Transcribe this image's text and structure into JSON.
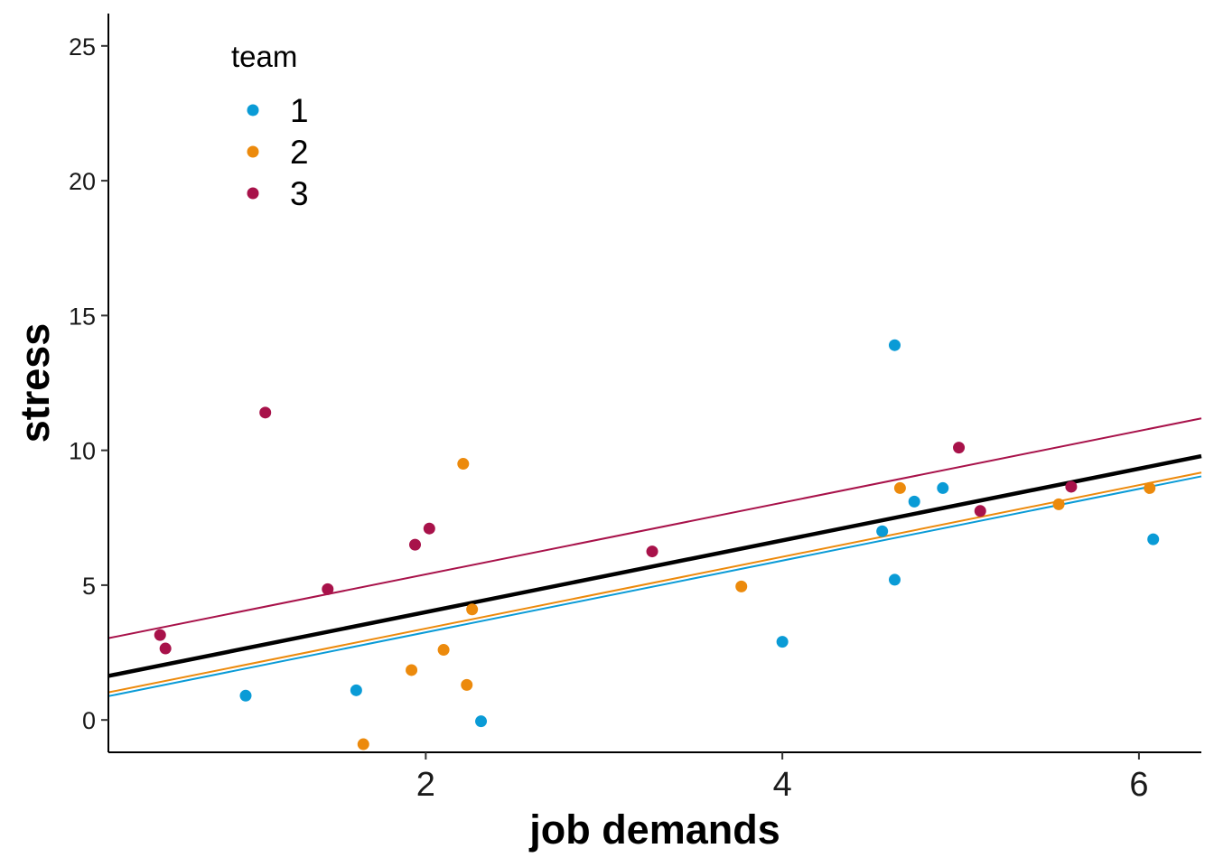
{
  "chart_data": {
    "type": "scatter",
    "title": "",
    "xlabel": "job demands",
    "ylabel": "stress",
    "xlim": [
      0.22,
      6.35
    ],
    "ylim": [
      -1.2,
      26.2
    ],
    "x_ticks": [
      2,
      4,
      6
    ],
    "y_ticks": [
      0,
      5,
      10,
      15,
      20,
      25
    ],
    "grid": false,
    "legend": {
      "title": "team",
      "position": "top-left"
    },
    "series": [
      {
        "name": "1",
        "color": "#0A9BD6",
        "points": [
          {
            "x": 0.99,
            "y": 0.9
          },
          {
            "x": 1.61,
            "y": 1.1
          },
          {
            "x": 2.31,
            "y": -0.05
          },
          {
            "x": 4.0,
            "y": 2.9
          },
          {
            "x": 4.56,
            "y": 7.0
          },
          {
            "x": 4.63,
            "y": 5.2
          },
          {
            "x": 4.63,
            "y": 13.9
          },
          {
            "x": 4.74,
            "y": 8.1
          },
          {
            "x": 4.9,
            "y": 8.6
          },
          {
            "x": 6.08,
            "y": 6.7
          }
        ],
        "fit": {
          "intercept": 0.59,
          "slope": 1.33
        }
      },
      {
        "name": "2",
        "color": "#EC8A0C",
        "points": [
          {
            "x": 1.65,
            "y": -0.9
          },
          {
            "x": 1.92,
            "y": 1.85
          },
          {
            "x": 2.1,
            "y": 2.6
          },
          {
            "x": 2.21,
            "y": 9.5
          },
          {
            "x": 2.23,
            "y": 1.3
          },
          {
            "x": 2.26,
            "y": 4.1
          },
          {
            "x": 3.77,
            "y": 4.95
          },
          {
            "x": 4.66,
            "y": 8.6
          },
          {
            "x": 5.55,
            "y": 8.0
          },
          {
            "x": 6.06,
            "y": 8.6
          }
        ],
        "fit": {
          "intercept": 0.73,
          "slope": 1.33
        }
      },
      {
        "name": "3",
        "color": "#A8124A",
        "points": [
          {
            "x": 0.51,
            "y": 3.15
          },
          {
            "x": 0.54,
            "y": 2.65
          },
          {
            "x": 1.1,
            "y": 11.4
          },
          {
            "x": 1.45,
            "y": 4.85
          },
          {
            "x": 1.94,
            "y": 6.5
          },
          {
            "x": 2.02,
            "y": 7.1
          },
          {
            "x": 3.27,
            "y": 6.25
          },
          {
            "x": 4.99,
            "y": 10.1
          },
          {
            "x": 5.11,
            "y": 7.75
          },
          {
            "x": 5.62,
            "y": 8.65
          }
        ],
        "fit": {
          "intercept": 2.74,
          "slope": 1.33
        }
      }
    ],
    "overall_fit": {
      "color": "#000000",
      "intercept": 1.34,
      "slope": 1.33
    }
  }
}
